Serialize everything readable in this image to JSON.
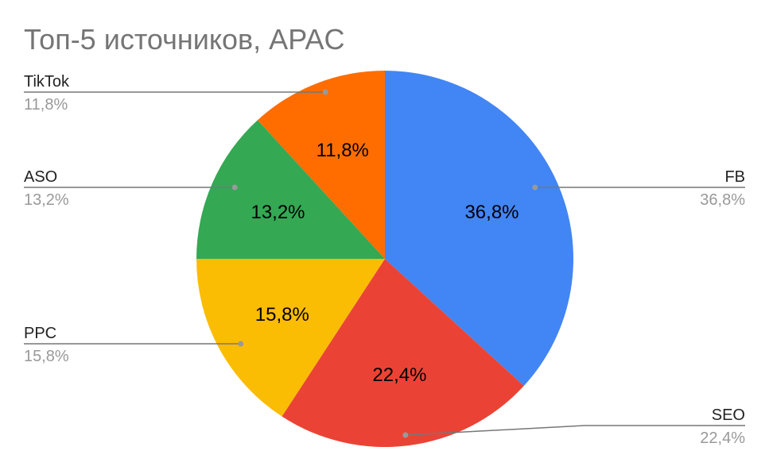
{
  "chart_data": {
    "type": "pie",
    "title": "Топ-5 источников, APAC",
    "categories": [
      "FB",
      "SEO",
      "PPC",
      "ASO",
      "TikTok"
    ],
    "values": [
      36.8,
      22.4,
      15.8,
      13.2,
      11.8
    ],
    "value_labels": [
      "36,8%",
      "22,4%",
      "15,8%",
      "13,2%",
      "11,8%"
    ],
    "colors": [
      "#4285f4",
      "#ea4335",
      "#fbbc04",
      "#34a853",
      "#ff6d01"
    ]
  }
}
